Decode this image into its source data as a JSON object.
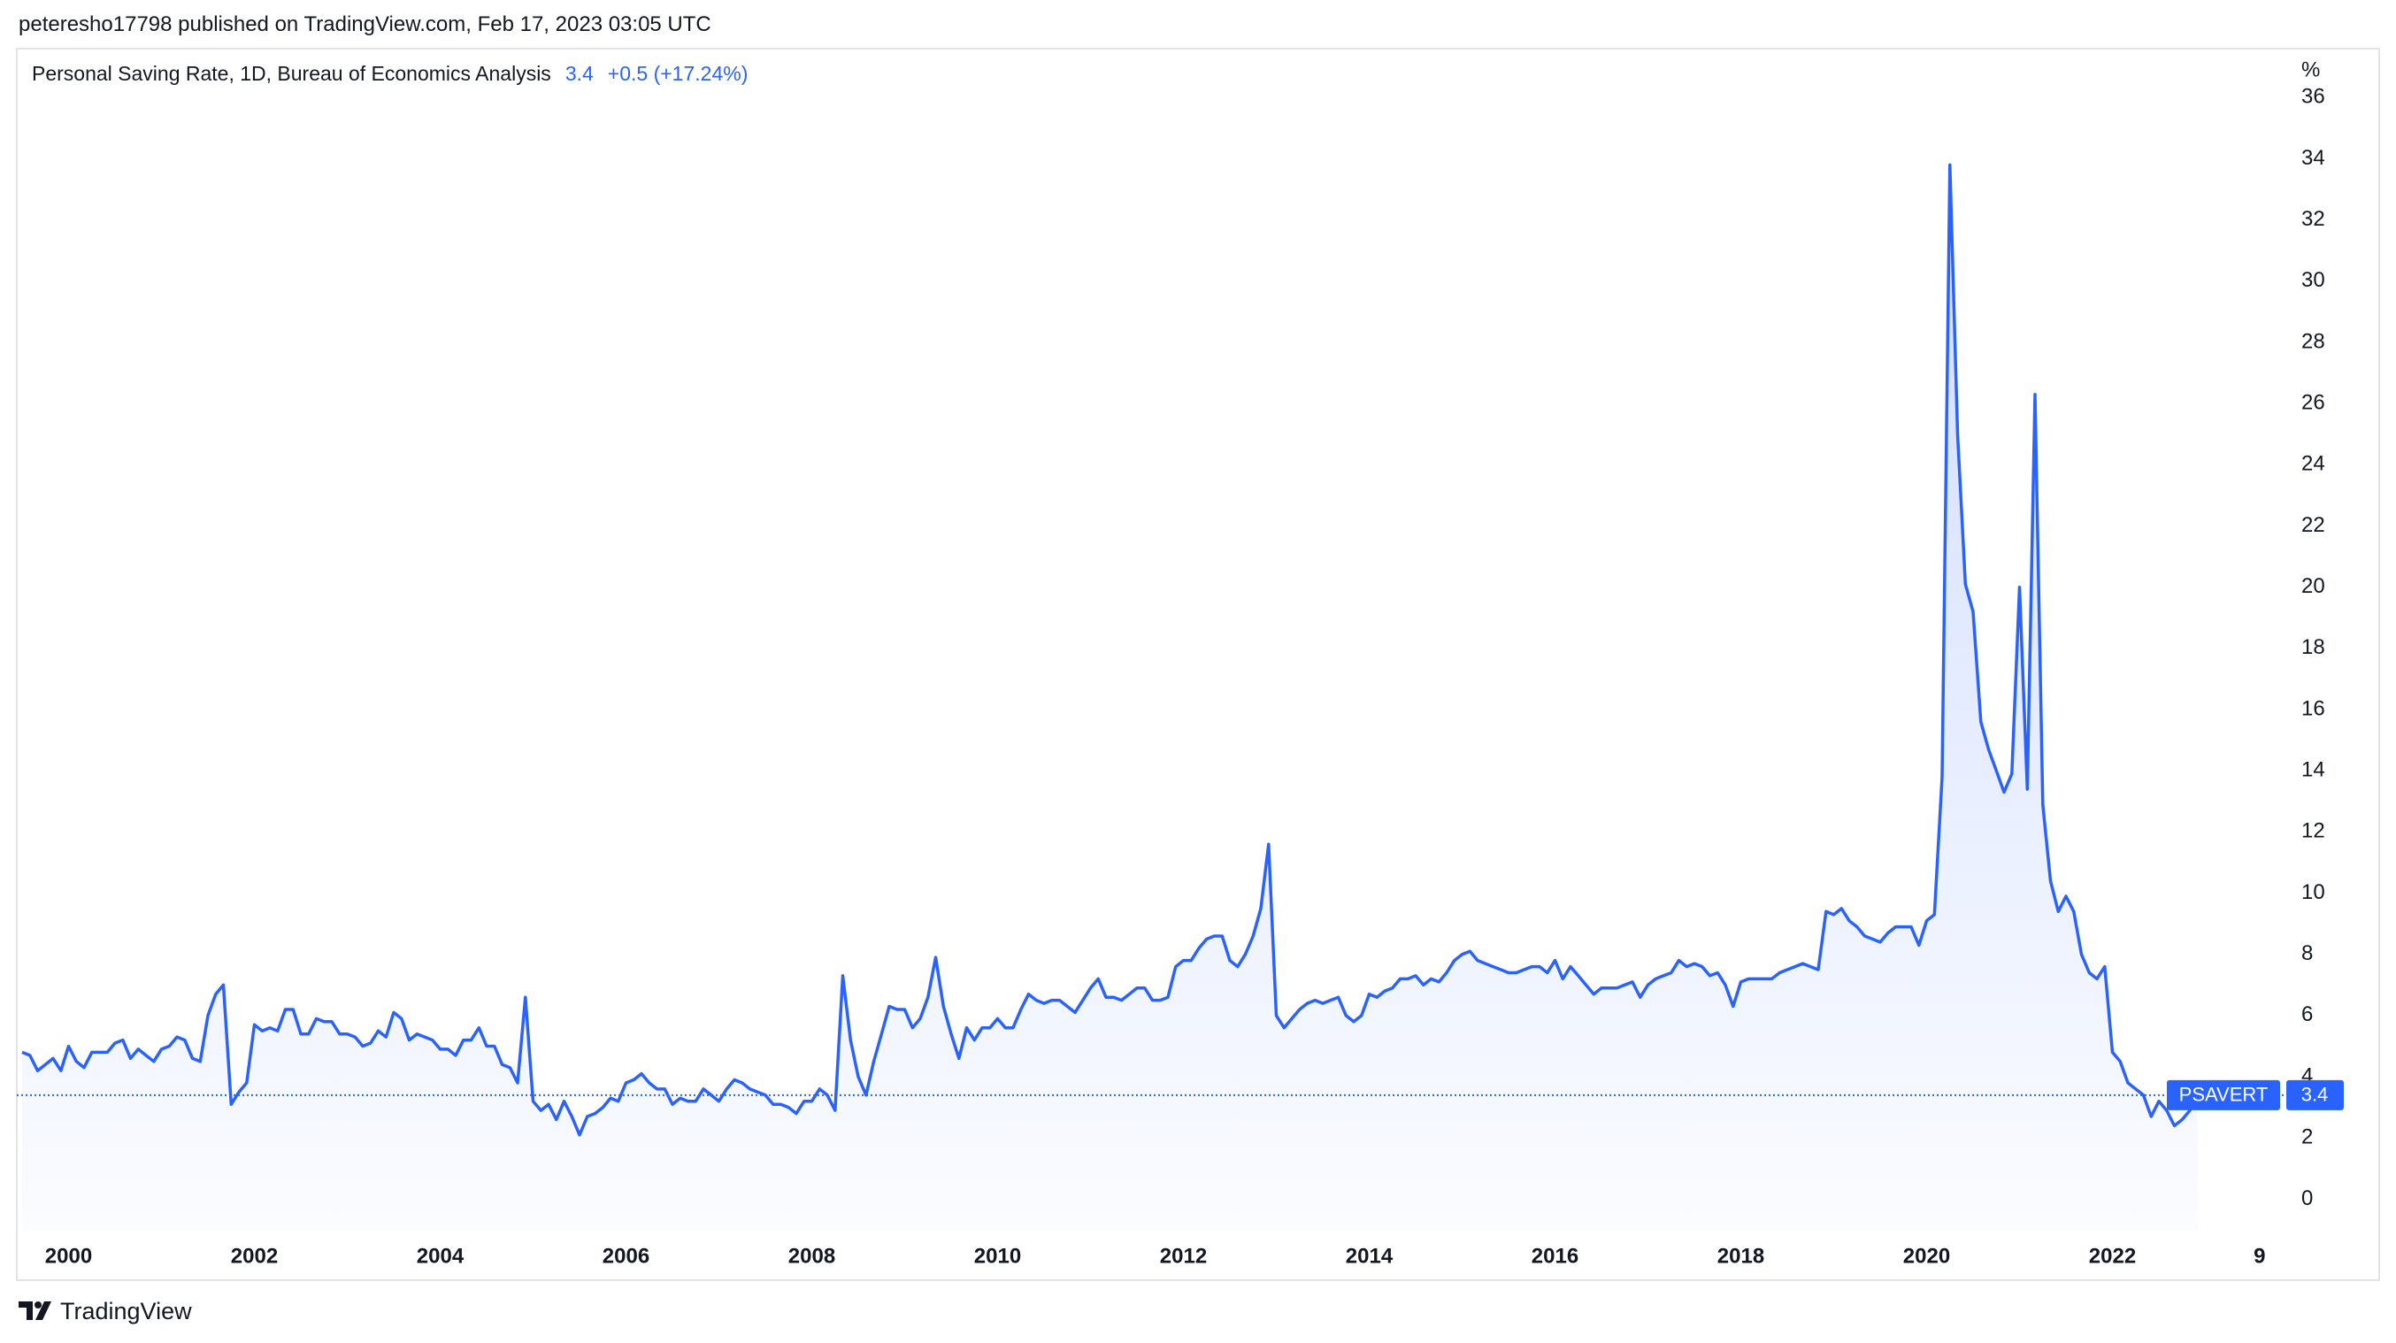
{
  "header": "peteresho17798 published on TradingView.com, Feb 17, 2023 03:05 UTC",
  "footer": "TradingView",
  "chart_data": {
    "type": "line",
    "title": "Personal Saving Rate, 1D, Bureau of Economics Analysis",
    "change_label": "+0.5 (+17.24%)",
    "y_unit": "%",
    "categories": [
      null,
      null,
      null,
      null,
      null,
      null,
      "2000",
      null,
      null,
      null,
      null,
      null,
      null,
      null,
      null,
      null,
      null,
      null,
      null,
      null,
      null,
      null,
      null,
      null,
      null,
      null,
      null,
      null,
      null,
      null,
      "2002",
      null,
      null,
      null,
      null,
      null,
      null,
      null,
      null,
      null,
      null,
      null,
      null,
      null,
      null,
      null,
      null,
      null,
      null,
      null,
      null,
      null,
      null,
      null,
      "2004",
      null,
      null,
      null,
      null,
      null,
      null,
      null,
      null,
      null,
      null,
      null,
      null,
      null,
      null,
      null,
      null,
      null,
      null,
      null,
      null,
      null,
      null,
      null,
      "2006",
      null,
      null,
      null,
      null,
      null,
      null,
      null,
      null,
      null,
      null,
      null,
      null,
      null,
      null,
      null,
      null,
      null,
      null,
      null,
      null,
      null,
      null,
      null,
      "2008",
      null,
      null,
      null,
      null,
      null,
      null,
      null,
      null,
      null,
      null,
      null,
      null,
      null,
      null,
      null,
      null,
      null,
      null,
      null,
      null,
      null,
      null,
      null,
      "2010",
      null,
      null,
      null,
      null,
      null,
      null,
      null,
      null,
      null,
      null,
      null,
      null,
      null,
      null,
      null,
      null,
      null,
      null,
      null,
      null,
      null,
      null,
      null,
      "2012",
      null,
      null,
      null,
      null,
      null,
      null,
      null,
      null,
      null,
      null,
      null,
      null,
      null,
      null,
      null,
      null,
      null,
      null,
      null,
      null,
      null,
      null,
      null,
      "2014",
      null,
      null,
      null,
      null,
      null,
      null,
      null,
      null,
      null,
      null,
      null,
      null,
      null,
      null,
      null,
      null,
      null,
      null,
      null,
      null,
      null,
      null,
      null,
      "2016",
      null,
      null,
      null,
      null,
      null,
      null,
      null,
      null,
      null,
      null,
      null,
      null,
      null,
      null,
      null,
      null,
      null,
      null,
      null,
      null,
      null,
      null,
      null,
      "2018",
      null,
      null,
      null,
      null,
      null,
      null,
      null,
      null,
      null,
      null,
      null,
      null,
      null,
      null,
      null,
      null,
      null,
      null,
      null,
      null,
      null,
      null,
      null,
      "2020",
      null,
      null,
      null,
      null,
      null,
      null,
      null,
      null,
      null,
      null,
      null,
      null,
      null,
      null,
      null,
      null,
      null,
      null,
      null,
      null,
      null,
      null,
      null,
      "2022",
      null,
      null,
      null,
      null,
      null,
      null,
      null,
      null,
      null,
      null,
      null,
      null,
      null,
      null,
      null,
      null,
      null,
      null,
      "9",
      null,
      null,
      null
    ],
    "series": [
      {
        "name": "PSAVERT",
        "color": "#2962ff",
        "values": [
          4.8,
          4.7,
          4.2,
          4.4,
          4.6,
          4.2,
          5.0,
          4.5,
          4.3,
          4.8,
          4.8,
          4.8,
          5.1,
          5.2,
          4.6,
          4.9,
          4.7,
          4.5,
          4.9,
          5.0,
          5.3,
          5.2,
          4.6,
          4.5,
          6.0,
          6.7,
          7.0,
          3.1,
          3.5,
          3.8,
          5.7,
          5.5,
          5.6,
          5.5,
          6.2,
          6.2,
          5.4,
          5.4,
          5.9,
          5.8,
          5.8,
          5.4,
          5.4,
          5.3,
          5.0,
          5.1,
          5.5,
          5.3,
          6.1,
          5.9,
          5.2,
          5.4,
          5.3,
          5.2,
          4.9,
          4.9,
          4.7,
          5.2,
          5.2,
          5.6,
          5.0,
          5.0,
          4.4,
          4.3,
          3.8,
          6.6,
          3.2,
          2.9,
          3.1,
          2.6,
          3.2,
          2.7,
          2.1,
          2.7,
          2.8,
          3.0,
          3.3,
          3.2,
          3.8,
          3.9,
          4.1,
          3.8,
          3.6,
          3.6,
          3.1,
          3.3,
          3.2,
          3.2,
          3.6,
          3.4,
          3.2,
          3.6,
          3.9,
          3.8,
          3.6,
          3.5,
          3.4,
          3.1,
          3.1,
          3.0,
          2.8,
          3.2,
          3.2,
          3.6,
          3.4,
          2.9,
          7.3,
          5.2,
          4.0,
          3.4,
          4.5,
          5.4,
          6.3,
          6.2,
          6.2,
          5.6,
          5.9,
          6.6,
          7.9,
          6.3,
          5.4,
          4.6,
          5.6,
          5.2,
          5.6,
          5.6,
          5.9,
          5.6,
          5.6,
          6.2,
          6.7,
          6.5,
          6.4,
          6.5,
          6.5,
          6.3,
          6.1,
          6.5,
          6.9,
          7.2,
          6.6,
          6.6,
          6.5,
          6.7,
          6.9,
          6.9,
          6.5,
          6.5,
          6.6,
          7.6,
          7.8,
          7.8,
          8.2,
          8.5,
          8.6,
          8.6,
          7.8,
          7.6,
          8.0,
          8.6,
          9.5,
          11.6,
          6.0,
          5.6,
          5.9,
          6.2,
          6.4,
          6.5,
          6.4,
          6.5,
          6.6,
          6.0,
          5.8,
          6.0,
          6.7,
          6.6,
          6.8,
          6.9,
          7.2,
          7.2,
          7.3,
          7.0,
          7.2,
          7.1,
          7.4,
          7.8,
          8.0,
          8.1,
          7.8,
          7.7,
          7.6,
          7.5,
          7.4,
          7.4,
          7.5,
          7.6,
          7.6,
          7.4,
          7.8,
          7.2,
          7.6,
          7.3,
          7.0,
          6.7,
          6.9,
          6.9,
          6.9,
          7.0,
          7.1,
          6.6,
          7.0,
          7.2,
          7.3,
          7.4,
          7.8,
          7.6,
          7.7,
          7.6,
          7.3,
          7.4,
          7.0,
          6.3,
          7.1,
          7.2,
          7.2,
          7.2,
          7.2,
          7.4,
          7.5,
          7.6,
          7.7,
          7.6,
          7.5,
          9.4,
          9.3,
          9.5,
          9.1,
          8.9,
          8.6,
          8.5,
          8.4,
          8.7,
          8.9,
          8.9,
          8.9,
          8.3,
          9.1,
          9.3,
          13.8,
          33.8,
          25.0,
          20.1,
          19.2,
          15.6,
          14.7,
          14.0,
          13.3,
          13.9,
          20.0,
          13.4,
          26.3,
          12.9,
          10.4,
          9.4,
          9.9,
          9.4,
          8.0,
          7.4,
          7.2,
          7.6,
          4.8,
          4.5,
          3.8,
          3.6,
          3.4,
          2.7,
          3.2,
          2.9,
          2.4,
          2.6,
          2.9,
          3.4,
          null,
          null,
          null,
          null,
          null,
          null,
          null,
          null,
          null,
          null,
          null
        ]
      }
    ],
    "ylim": [
      -1,
      37.6
    ],
    "yticks": [
      0,
      2,
      4,
      6,
      8,
      10,
      12,
      14,
      16,
      18,
      20,
      22,
      24,
      26,
      28,
      30,
      32,
      34,
      36
    ],
    "grid": false,
    "area_fill": true
  }
}
